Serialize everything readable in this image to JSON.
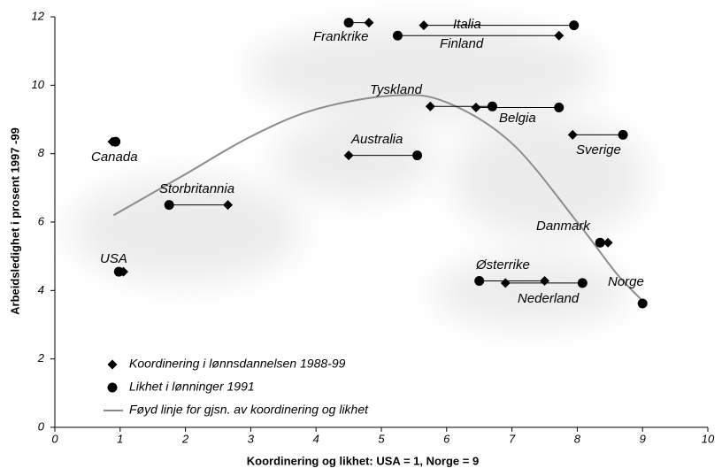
{
  "chart_data": {
    "type": "scatter",
    "x_label": "Koordinering og likhet:  USA = 1, Norge = 9",
    "y_label": "Arbeidsledighet i prosent 1997 -99",
    "xlim": [
      0,
      10
    ],
    "xticks": [
      0,
      1,
      2,
      3,
      4,
      5,
      6,
      7,
      8,
      9,
      10
    ],
    "ylim": [
      0,
      12
    ],
    "yticks": [
      0,
      2,
      4,
      6,
      8,
      10,
      12
    ],
    "categories": [
      "Frankrike",
      "Italia",
      "Finland",
      "Tyskland",
      "Belgia",
      "Australia",
      "Sverige",
      "Canada",
      "Storbritannia",
      "USA",
      "Danmark",
      "Østerrike",
      "Nederland",
      "Norge"
    ],
    "series": [
      {
        "name": "Koordinering i lønnsdannelsen 1988-99",
        "marker": "diamond",
        "color": "#000000",
        "x": [
          4.81,
          5.65,
          7.72,
          5.75,
          6.45,
          4.5,
          7.93,
          0.88,
          2.65,
          1.05,
          8.47,
          7.5,
          6.9,
          9.0
        ],
        "y": [
          11.83,
          11.75,
          11.45,
          9.38,
          9.35,
          7.95,
          8.55,
          8.35,
          6.5,
          4.55,
          5.4,
          4.28,
          4.22,
          3.62
        ]
      },
      {
        "name": "Likhet i lønninger 1991",
        "marker": "circle",
        "color": "#000000",
        "x": [
          4.5,
          7.95,
          5.25,
          6.7,
          7.72,
          5.55,
          8.7,
          0.93,
          1.75,
          0.98,
          8.35,
          6.5,
          8.08,
          9.0
        ],
        "y": [
          11.83,
          11.75,
          11.45,
          9.38,
          9.35,
          7.95,
          8.55,
          8.35,
          6.5,
          4.55,
          5.4,
          4.28,
          4.22,
          3.62
        ]
      }
    ],
    "fit": {
      "name": "Føyd linje for gjsn. av koordinering og likhet",
      "color": "#8c8c8c",
      "x": [
        0.9,
        2,
        3,
        4,
        5.2,
        6,
        7,
        8,
        8.6,
        9
      ],
      "y": [
        6.2,
        7.4,
        8.5,
        9.3,
        9.7,
        9.5,
        8.3,
        6.0,
        4.5,
        3.7
      ]
    }
  }
}
